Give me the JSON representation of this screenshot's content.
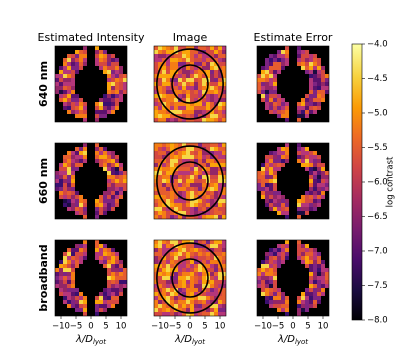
{
  "chart_data": {
    "type": "image-grid",
    "colormap": "inferno",
    "columns": [
      "Estimated Intensity",
      "Image",
      "Estimate Error"
    ],
    "rows": [
      "640 nm",
      "660 nm",
      "broadband"
    ],
    "xlabel": "λ/D",
    "xlabel_sub": "lyot",
    "xlim": [
      -12,
      12
    ],
    "xticks": [
      {
        "value": -10,
        "label": "−10"
      },
      {
        "value": -5,
        "label": "−5"
      },
      0,
      5,
      10
    ],
    "colorbar": {
      "label": "log contrast",
      "lim": [
        -8,
        -4
      ],
      "ticks": [
        {
          "value": -4,
          "label": "−4.0"
        },
        {
          "value": -4.5,
          "label": "−4.5"
        },
        {
          "value": -5,
          "label": "−5.0"
        },
        {
          "value": -5.5,
          "label": "−5.5"
        },
        {
          "value": -6,
          "label": "−6.0"
        },
        {
          "value": -6.5,
          "label": "−6.5"
        },
        {
          "value": -7,
          "label": "−7.0"
        },
        {
          "value": -7.5,
          "label": "−7.5"
        },
        {
          "value": -8,
          "label": "−8.0"
        }
      ]
    }
  }
}
